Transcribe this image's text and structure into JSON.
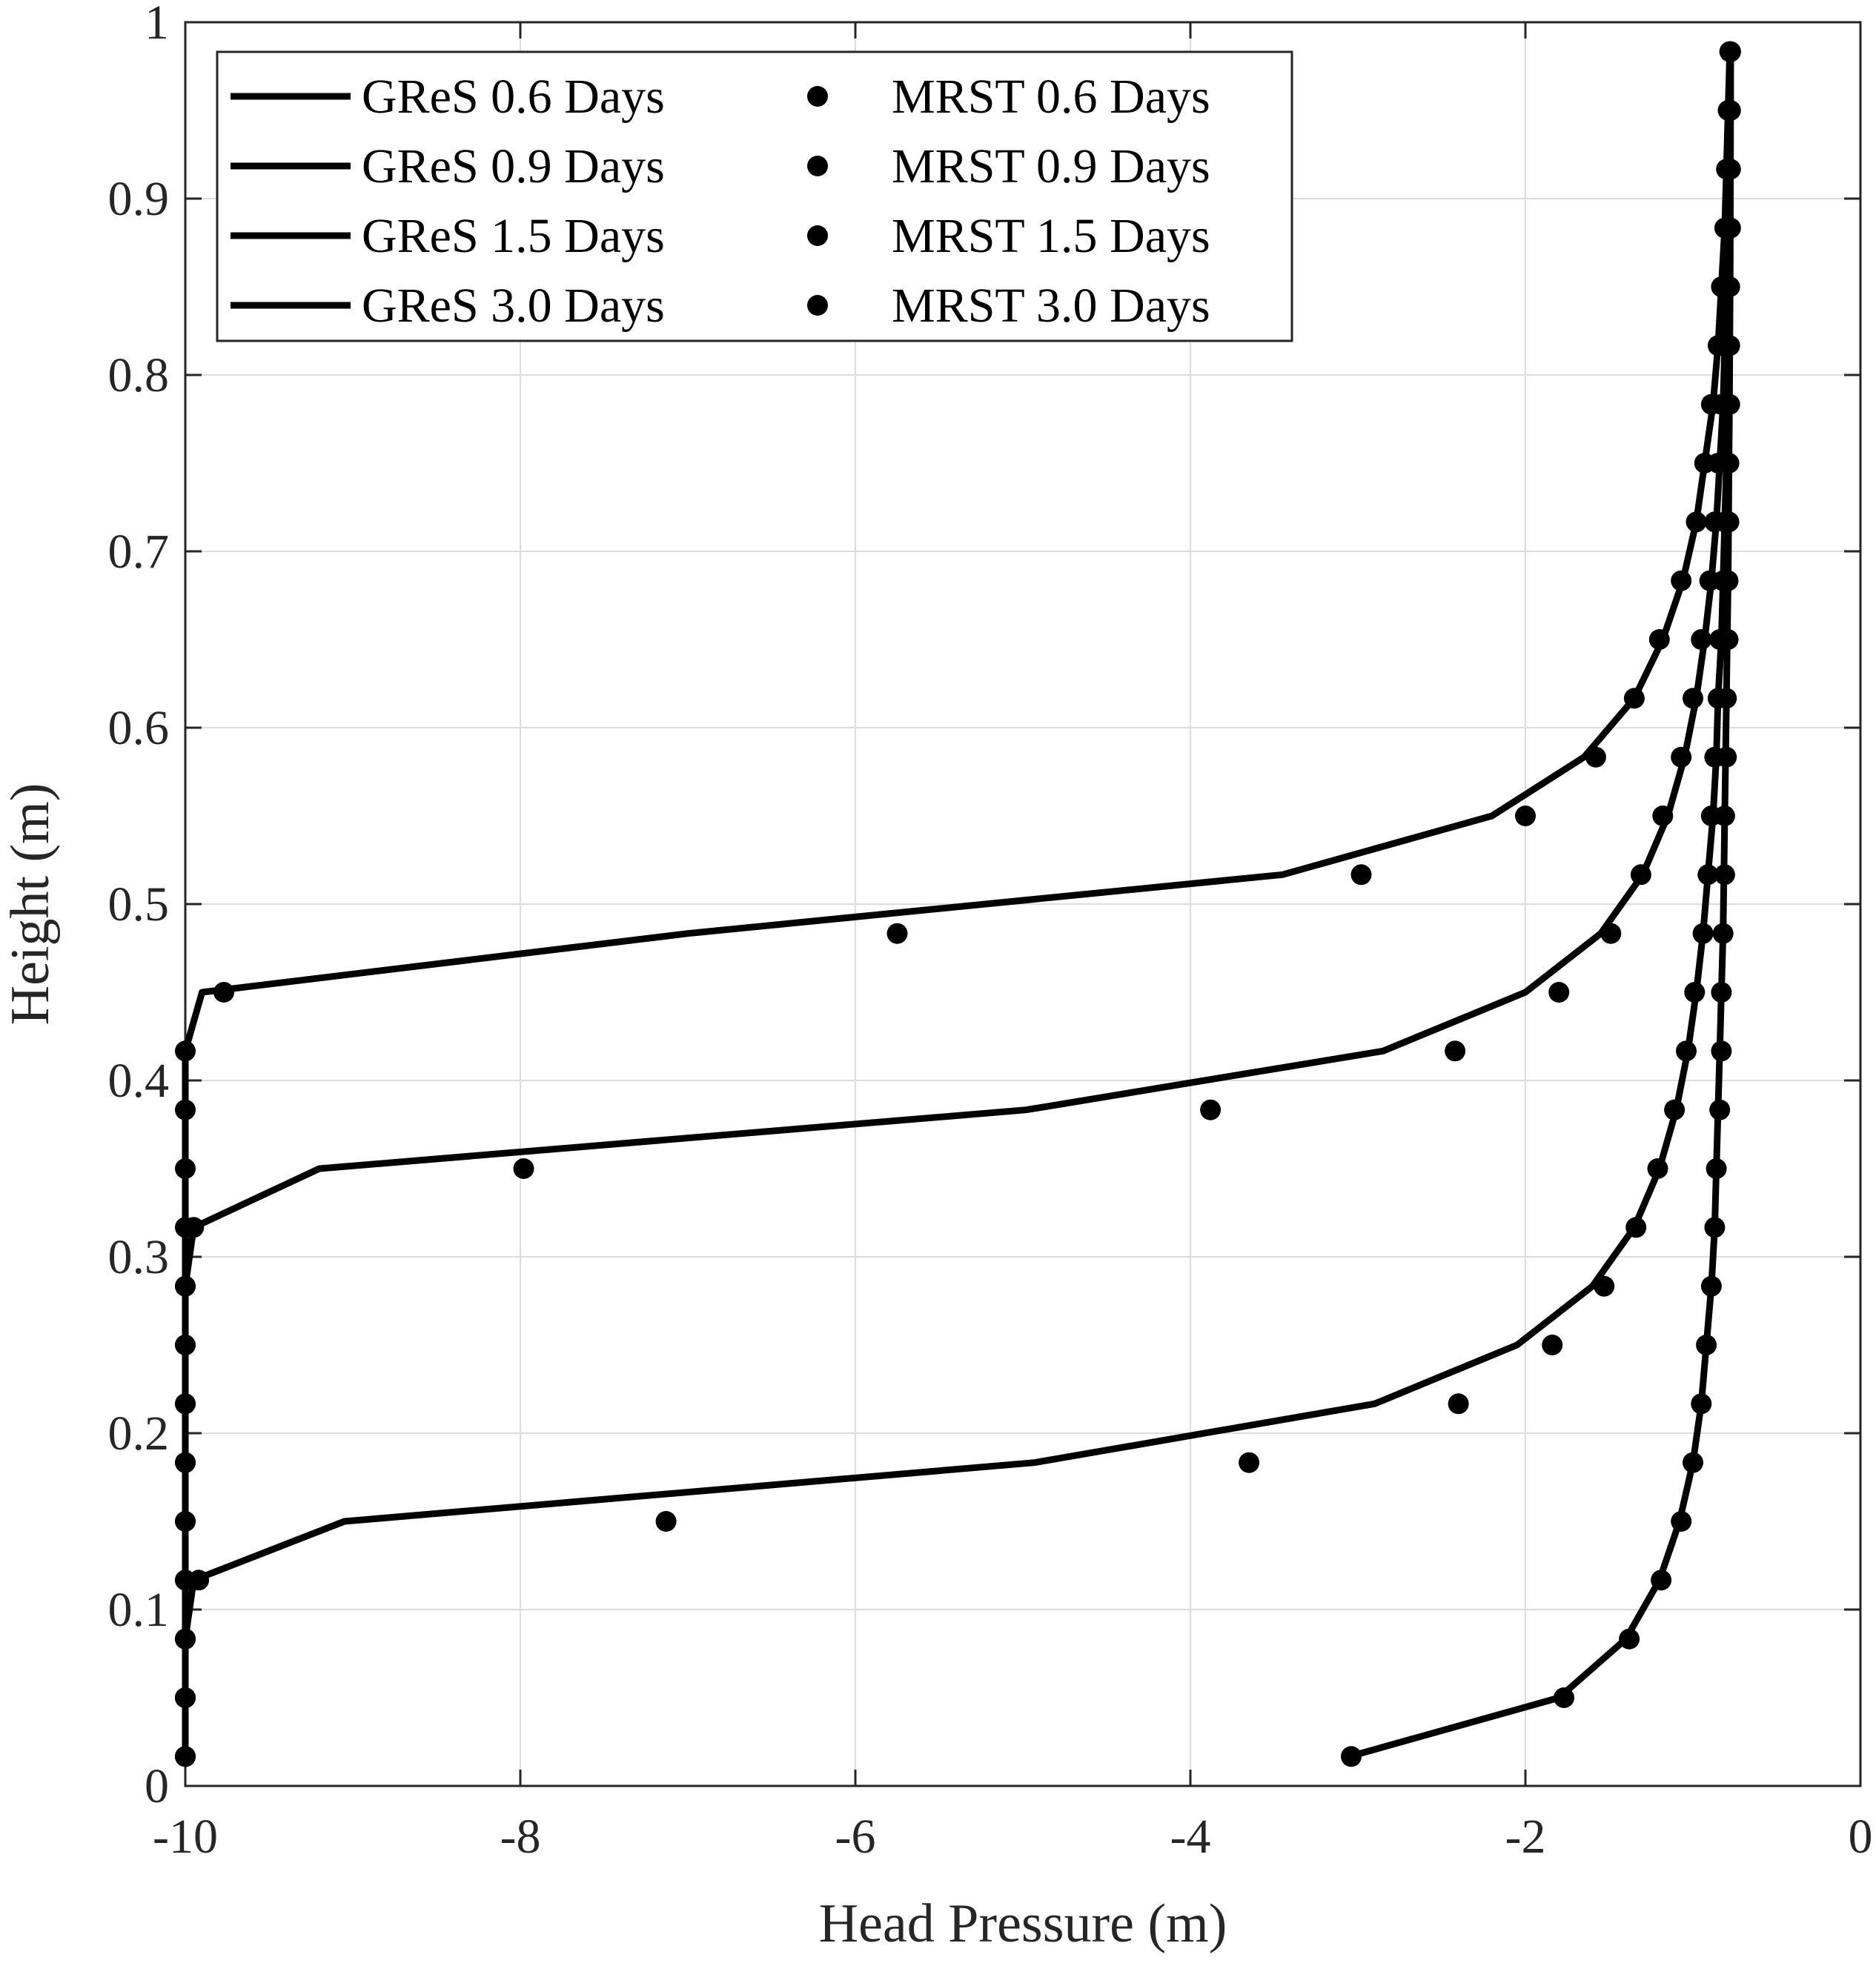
{
  "chart_data": {
    "type": "line",
    "xlabel": "Head Pressure (m)",
    "ylabel": "Height (m)",
    "xlim": [
      -10,
      0
    ],
    "ylim": [
      0,
      1
    ],
    "xticks": [
      -10,
      -8,
      -6,
      -4,
      -2,
      0
    ],
    "xtick_labels": [
      "-10",
      "-8",
      "-6",
      "-4",
      "-2",
      "0"
    ],
    "yticks": [
      0,
      0.1,
      0.2,
      0.3,
      0.4,
      0.5,
      0.6,
      0.7,
      0.8,
      0.9,
      1
    ],
    "ytick_labels": [
      "0",
      "0.1",
      "0.2",
      "0.3",
      "0.4",
      "0.5",
      "0.6",
      "0.7",
      "0.8",
      "0.9",
      "1"
    ],
    "grid": true,
    "legend_position": "top-left",
    "legend_columns": 2,
    "series": [
      {
        "name": "GReS 0.6 Days",
        "style": "line",
        "color": "#000000",
        "points": [
          [
            -10,
            0.0167
          ],
          [
            -10,
            0.05
          ],
          [
            -10,
            0.0833
          ],
          [
            -10,
            0.1167
          ],
          [
            -10,
            0.15
          ],
          [
            -10,
            0.1833
          ],
          [
            -10,
            0.2167
          ],
          [
            -10,
            0.25
          ],
          [
            -10,
            0.2833
          ],
          [
            -10,
            0.3167
          ],
          [
            -10,
            0.35
          ],
          [
            -10,
            0.3833
          ],
          [
            -10,
            0.4167
          ],
          [
            -9.9,
            0.45
          ],
          [
            -7.0,
            0.4833
          ],
          [
            -3.45,
            0.5167
          ],
          [
            -2.2,
            0.55
          ],
          [
            -1.65,
            0.5833
          ],
          [
            -1.35,
            0.6167
          ],
          [
            -1.18,
            0.65
          ],
          [
            -1.06,
            0.6833
          ],
          [
            -0.98,
            0.7167
          ],
          [
            -0.93,
            0.75
          ],
          [
            -0.88,
            0.7833
          ],
          [
            -0.85,
            0.8167
          ],
          [
            -0.83,
            0.85
          ],
          [
            -0.81,
            0.8833
          ],
          [
            -0.8,
            0.9167
          ],
          [
            -0.79,
            0.95
          ],
          [
            -0.78,
            0.9833
          ]
        ]
      },
      {
        "name": "GReS 0.9 Days",
        "style": "line",
        "color": "#000000",
        "points": [
          [
            -10,
            0.0167
          ],
          [
            -10,
            0.05
          ],
          [
            -10,
            0.0833
          ],
          [
            -10,
            0.1167
          ],
          [
            -10,
            0.15
          ],
          [
            -10,
            0.1833
          ],
          [
            -10,
            0.2167
          ],
          [
            -10,
            0.25
          ],
          [
            -10,
            0.2833
          ],
          [
            -9.95,
            0.3167
          ],
          [
            -9.2,
            0.35
          ],
          [
            -4.98,
            0.3833
          ],
          [
            -2.85,
            0.4167
          ],
          [
            -2.0,
            0.45
          ],
          [
            -1.55,
            0.4833
          ],
          [
            -1.3,
            0.5167
          ],
          [
            -1.15,
            0.55
          ],
          [
            -1.05,
            0.5833
          ],
          [
            -0.98,
            0.6167
          ],
          [
            -0.93,
            0.65
          ],
          [
            -0.89,
            0.6833
          ],
          [
            -0.86,
            0.7167
          ],
          [
            -0.84,
            0.75
          ],
          [
            -0.82,
            0.7833
          ],
          [
            -0.81,
            0.8167
          ],
          [
            -0.8,
            0.85
          ],
          [
            -0.79,
            0.8833
          ],
          [
            -0.785,
            0.9167
          ],
          [
            -0.78,
            0.95
          ],
          [
            -0.775,
            0.9833
          ]
        ]
      },
      {
        "name": "GReS 1.5 Days",
        "style": "line",
        "color": "#000000",
        "points": [
          [
            -10,
            0.0167
          ],
          [
            -10,
            0.05
          ],
          [
            -10,
            0.0833
          ],
          [
            -9.95,
            0.1167
          ],
          [
            -9.05,
            0.15
          ],
          [
            -4.93,
            0.1833
          ],
          [
            -2.9,
            0.2167
          ],
          [
            -2.05,
            0.25
          ],
          [
            -1.6,
            0.2833
          ],
          [
            -1.35,
            0.3167
          ],
          [
            -1.2,
            0.35
          ],
          [
            -1.1,
            0.3833
          ],
          [
            -1.03,
            0.4167
          ],
          [
            -0.98,
            0.45
          ],
          [
            -0.94,
            0.4833
          ],
          [
            -0.91,
            0.5167
          ],
          [
            -0.88,
            0.55
          ],
          [
            -0.86,
            0.5833
          ],
          [
            -0.85,
            0.6167
          ],
          [
            -0.83,
            0.65
          ],
          [
            -0.82,
            0.6833
          ],
          [
            -0.81,
            0.7167
          ],
          [
            -0.8,
            0.75
          ],
          [
            -0.795,
            0.7833
          ],
          [
            -0.79,
            0.8167
          ],
          [
            -0.785,
            0.85
          ],
          [
            -0.78,
            0.8833
          ],
          [
            -0.778,
            0.9167
          ],
          [
            -0.776,
            0.95
          ],
          [
            -0.775,
            0.9833
          ]
        ]
      },
      {
        "name": "GReS 3.0 Days",
        "style": "line",
        "color": "#000000",
        "points": [
          [
            -3.05,
            0.0167
          ],
          [
            -1.8,
            0.05
          ],
          [
            -1.4,
            0.0833
          ],
          [
            -1.2,
            0.1167
          ],
          [
            -1.08,
            0.15
          ],
          [
            -1.0,
            0.1833
          ],
          [
            -0.95,
            0.2167
          ],
          [
            -0.92,
            0.25
          ],
          [
            -0.89,
            0.2833
          ],
          [
            -0.87,
            0.3167
          ],
          [
            -0.86,
            0.35
          ],
          [
            -0.85,
            0.3833
          ],
          [
            -0.84,
            0.4167
          ],
          [
            -0.83,
            0.45
          ],
          [
            -0.82,
            0.4833
          ],
          [
            -0.815,
            0.5167
          ],
          [
            -0.81,
            0.55
          ],
          [
            -0.805,
            0.5833
          ],
          [
            -0.8,
            0.6167
          ],
          [
            -0.795,
            0.65
          ],
          [
            -0.79,
            0.6833
          ],
          [
            -0.787,
            0.7167
          ],
          [
            -0.785,
            0.75
          ],
          [
            -0.782,
            0.7833
          ],
          [
            -0.78,
            0.8167
          ],
          [
            -0.778,
            0.85
          ],
          [
            -0.777,
            0.8833
          ],
          [
            -0.776,
            0.9167
          ],
          [
            -0.775,
            0.95
          ],
          [
            -0.775,
            0.9833
          ]
        ]
      },
      {
        "name": "MRST 0.6 Days",
        "style": "dot",
        "color": "#000000",
        "points": [
          [
            -10,
            0.0167
          ],
          [
            -10,
            0.05
          ],
          [
            -10,
            0.0833
          ],
          [
            -10,
            0.1167
          ],
          [
            -10,
            0.15
          ],
          [
            -10,
            0.1833
          ],
          [
            -10,
            0.2167
          ],
          [
            -10,
            0.25
          ],
          [
            -10,
            0.2833
          ],
          [
            -10,
            0.3167
          ],
          [
            -10,
            0.35
          ],
          [
            -10,
            0.3833
          ],
          [
            -10,
            0.4167
          ],
          [
            -9.77,
            0.45
          ],
          [
            -5.75,
            0.4833
          ],
          [
            -2.98,
            0.5167
          ],
          [
            -2.0,
            0.55
          ],
          [
            -1.58,
            0.5833
          ],
          [
            -1.35,
            0.6167
          ],
          [
            -1.2,
            0.65
          ],
          [
            -1.07,
            0.6833
          ],
          [
            -0.98,
            0.7167
          ],
          [
            -0.93,
            0.75
          ],
          [
            -0.89,
            0.7833
          ],
          [
            -0.85,
            0.8167
          ],
          [
            -0.83,
            0.85
          ],
          [
            -0.81,
            0.8833
          ],
          [
            -0.8,
            0.9167
          ],
          [
            -0.79,
            0.95
          ],
          [
            -0.78,
            0.9833
          ]
        ]
      },
      {
        "name": "MRST 0.9 Days",
        "style": "dot",
        "color": "#000000",
        "points": [
          [
            -10,
            0.0167
          ],
          [
            -10,
            0.05
          ],
          [
            -10,
            0.0833
          ],
          [
            -10,
            0.1167
          ],
          [
            -10,
            0.15
          ],
          [
            -10,
            0.1833
          ],
          [
            -10,
            0.2167
          ],
          [
            -10,
            0.25
          ],
          [
            -10,
            0.2833
          ],
          [
            -9.95,
            0.3167
          ],
          [
            -7.98,
            0.35
          ],
          [
            -3.88,
            0.3833
          ],
          [
            -2.42,
            0.4167
          ],
          [
            -1.8,
            0.45
          ],
          [
            -1.49,
            0.4833
          ],
          [
            -1.31,
            0.5167
          ],
          [
            -1.18,
            0.55
          ],
          [
            -1.07,
            0.5833
          ],
          [
            -1.0,
            0.6167
          ],
          [
            -0.95,
            0.65
          ],
          [
            -0.9,
            0.6833
          ],
          [
            -0.87,
            0.7167
          ],
          [
            -0.85,
            0.75
          ],
          [
            -0.83,
            0.7833
          ],
          [
            -0.82,
            0.8167
          ],
          [
            -0.81,
            0.85
          ],
          [
            -0.8,
            0.8833
          ],
          [
            -0.79,
            0.9167
          ],
          [
            -0.785,
            0.95
          ],
          [
            -0.78,
            0.9833
          ]
        ]
      },
      {
        "name": "MRST 1.5 Days",
        "style": "dot",
        "color": "#000000",
        "points": [
          [
            -10,
            0.0167
          ],
          [
            -10,
            0.05
          ],
          [
            -10,
            0.0833
          ],
          [
            -9.92,
            0.1167
          ],
          [
            -7.13,
            0.15
          ],
          [
            -3.65,
            0.1833
          ],
          [
            -2.4,
            0.2167
          ],
          [
            -1.84,
            0.25
          ],
          [
            -1.53,
            0.2833
          ],
          [
            -1.34,
            0.3167
          ],
          [
            -1.21,
            0.35
          ],
          [
            -1.11,
            0.3833
          ],
          [
            -1.04,
            0.4167
          ],
          [
            -0.99,
            0.45
          ],
          [
            -0.94,
            0.4833
          ],
          [
            -0.91,
            0.5167
          ],
          [
            -0.89,
            0.55
          ],
          [
            -0.87,
            0.5833
          ],
          [
            -0.85,
            0.6167
          ],
          [
            -0.84,
            0.65
          ],
          [
            -0.82,
            0.6833
          ],
          [
            -0.81,
            0.7167
          ],
          [
            -0.8,
            0.75
          ],
          [
            -0.8,
            0.7833
          ],
          [
            -0.79,
            0.8167
          ],
          [
            -0.79,
            0.85
          ],
          [
            -0.78,
            0.8833
          ],
          [
            -0.78,
            0.9167
          ],
          [
            -0.78,
            0.95
          ],
          [
            -0.775,
            0.9833
          ]
        ]
      },
      {
        "name": "MRST 3.0 Days",
        "style": "dot",
        "color": "#000000",
        "points": [
          [
            -3.04,
            0.0167
          ],
          [
            -1.77,
            0.05
          ],
          [
            -1.38,
            0.0833
          ],
          [
            -1.19,
            0.1167
          ],
          [
            -1.07,
            0.15
          ],
          [
            -1.0,
            0.1833
          ],
          [
            -0.95,
            0.2167
          ],
          [
            -0.92,
            0.25
          ],
          [
            -0.89,
            0.2833
          ],
          [
            -0.87,
            0.3167
          ],
          [
            -0.86,
            0.35
          ],
          [
            -0.84,
            0.3833
          ],
          [
            -0.83,
            0.4167
          ],
          [
            -0.83,
            0.45
          ],
          [
            -0.82,
            0.4833
          ],
          [
            -0.81,
            0.5167
          ],
          [
            -0.81,
            0.55
          ],
          [
            -0.8,
            0.5833
          ],
          [
            -0.8,
            0.6167
          ],
          [
            -0.79,
            0.65
          ],
          [
            -0.79,
            0.6833
          ],
          [
            -0.785,
            0.7167
          ],
          [
            -0.785,
            0.75
          ],
          [
            -0.78,
            0.7833
          ],
          [
            -0.78,
            0.8167
          ],
          [
            -0.78,
            0.85
          ],
          [
            -0.775,
            0.8833
          ],
          [
            -0.775,
            0.9167
          ],
          [
            -0.775,
            0.95
          ],
          [
            -0.775,
            0.9833
          ]
        ]
      }
    ]
  }
}
